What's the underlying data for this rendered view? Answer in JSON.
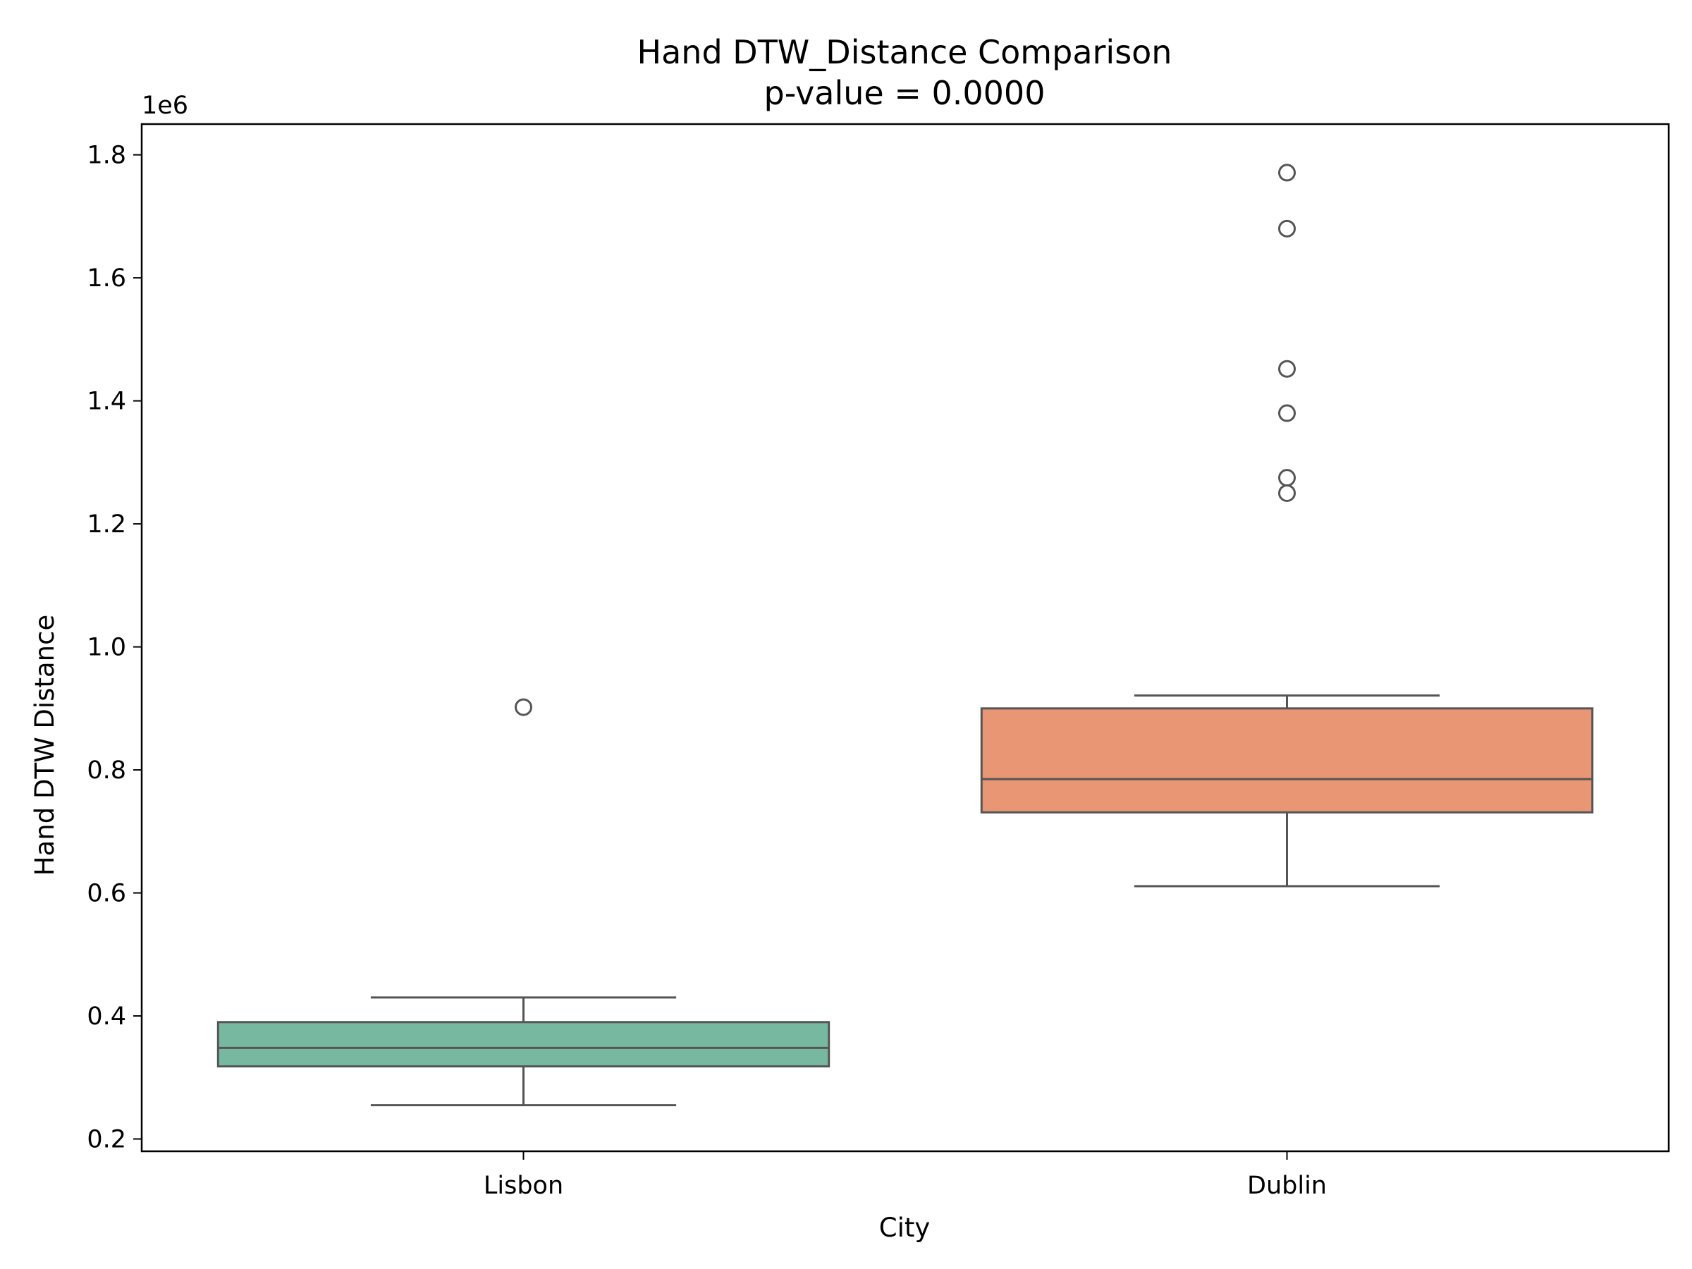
{
  "chart_data": {
    "type": "box",
    "title": "Hand DTW_Distance Comparison",
    "subtitle": "p-value = 0.0000",
    "xlabel": "City",
    "ylabel": "Hand DTW Distance",
    "y_scale_label": "1e6",
    "ylim": [
      180000,
      1850000
    ],
    "y_ticks": [
      200000,
      400000,
      600000,
      800000,
      1000000,
      1200000,
      1400000,
      1600000,
      1800000
    ],
    "y_tick_labels": [
      "0.2",
      "0.4",
      "0.6",
      "0.8",
      "1.0",
      "1.2",
      "1.4",
      "1.6",
      "1.8"
    ],
    "categories": [
      "Lisbon",
      "Dublin"
    ],
    "grid": false,
    "series": [
      {
        "category": "Lisbon",
        "color": "#76b8a0",
        "whisker_low": 255000,
        "q1": 318000,
        "median": 348000,
        "q3": 390000,
        "whisker_high": 430000,
        "outliers": [
          902000
        ]
      },
      {
        "category": "Dublin",
        "color": "#e89674",
        "whisker_low": 611000,
        "q1": 731000,
        "median": 785000,
        "q3": 900000,
        "whisker_high": 921000,
        "outliers": [
          1250000,
          1275000,
          1380000,
          1452000,
          1680000,
          1771000
        ]
      }
    ]
  }
}
